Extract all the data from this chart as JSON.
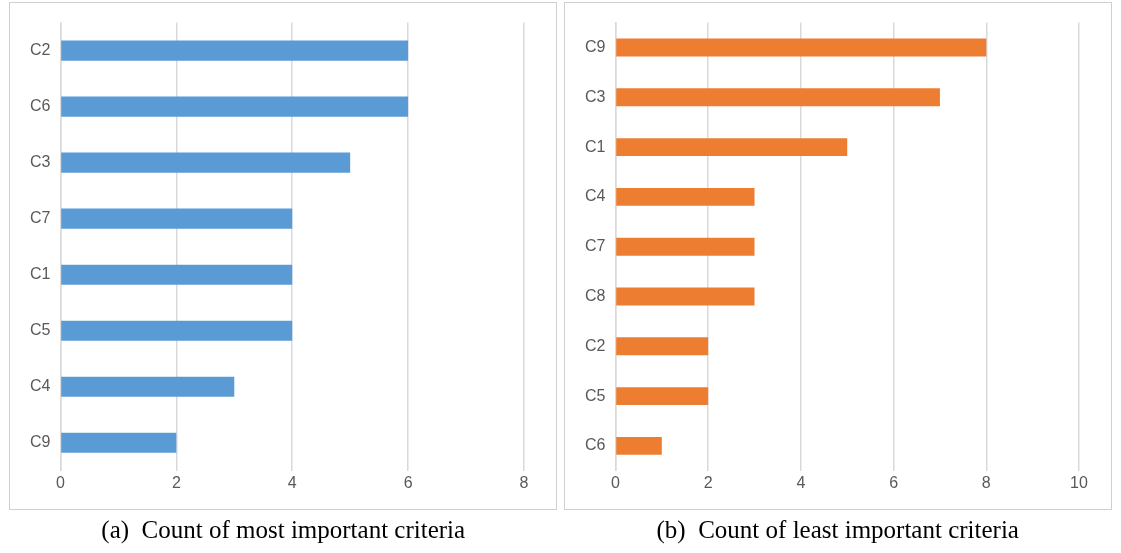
{
  "chart_data": [
    {
      "type": "bar",
      "orientation": "horizontal",
      "title": "(a)  Count of most important criteria",
      "categories": [
        "C2",
        "C6",
        "C3",
        "C7",
        "C1",
        "C5",
        "C4",
        "C9"
      ],
      "values": [
        6,
        6,
        5,
        4,
        4,
        4,
        3,
        2
      ],
      "color": "#5b9bd5",
      "xlim": [
        0,
        8
      ],
      "xticks": [
        0,
        2,
        4,
        6,
        8
      ],
      "grid": "x"
    },
    {
      "type": "bar",
      "orientation": "horizontal",
      "title": "(b)  Count of least important criteria",
      "categories": [
        "C9",
        "C3",
        "C1",
        "C4",
        "C7",
        "C8",
        "C2",
        "C5",
        "C6"
      ],
      "values": [
        8,
        7,
        5,
        3,
        3,
        3,
        2,
        2,
        1
      ],
      "color": "#ed7d31",
      "xlim": [
        0,
        10
      ],
      "xticks": [
        0,
        2,
        4,
        6,
        8,
        10
      ],
      "grid": "x"
    }
  ]
}
